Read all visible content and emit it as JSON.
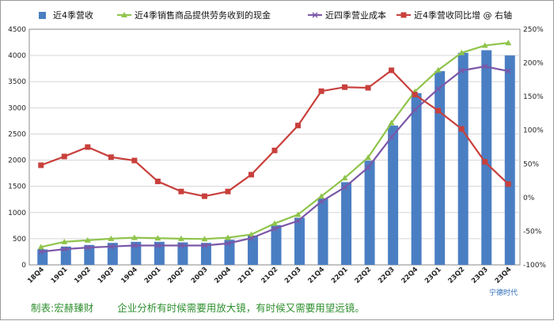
{
  "chart_data": {
    "type": "bar+line",
    "categories": [
      "18Q4",
      "19Q1",
      "19Q2",
      "19Q3",
      "19Q4",
      "20Q1",
      "20Q2",
      "20Q3",
      "20Q4",
      "21Q1",
      "21Q2",
      "21Q3",
      "21Q4",
      "22Q1",
      "22Q2",
      "22Q3",
      "22Q4",
      "23Q1",
      "23Q2",
      "23Q3",
      "23Q4"
    ],
    "series": [
      {
        "name": "近4季营收",
        "kind": "bar",
        "axis": "left",
        "color": "#4a7ec3",
        "values": [
          295,
          350,
          380,
          420,
          440,
          440,
          430,
          420,
          480,
          560,
          760,
          900,
          1270,
          1580,
          1990,
          2660,
          3280,
          3700,
          4050,
          4100,
          4000
        ]
      },
      {
        "name": "近4季销售商品提供劳务收到的现金",
        "kind": "line",
        "axis": "left",
        "color": "#8fc44b",
        "marker": "triangle",
        "values": [
          340,
          440,
          470,
          500,
          520,
          510,
          500,
          495,
          520,
          580,
          790,
          960,
          1310,
          1660,
          2050,
          2710,
          3310,
          3720,
          4050,
          4190,
          4240
        ]
      },
      {
        "name": "近四季营业成本",
        "kind": "line",
        "axis": "left",
        "color": "#7b57a8",
        "marker": "x",
        "values": [
          250,
          300,
          330,
          350,
          370,
          370,
          370,
          370,
          410,
          510,
          690,
          840,
          1210,
          1480,
          1860,
          2440,
          2960,
          3360,
          3710,
          3790,
          3700
        ]
      },
      {
        "name": "近4季营收同比增 @ 右轴",
        "kind": "line",
        "axis": "right",
        "color": "#c8403c",
        "marker": "square",
        "values": [
          48,
          61,
          75,
          60,
          55,
          24,
          9,
          2,
          9,
          34,
          70,
          107,
          158,
          164,
          163,
          189,
          153,
          129,
          102,
          53,
          20
        ]
      }
    ],
    "y_left": {
      "min": 0,
      "max": 4500,
      "step": 500
    },
    "y_right": {
      "min": -100,
      "max": 250,
      "step": 50,
      "suffix": "%"
    },
    "grid": true,
    "legend": "top"
  },
  "footer": {
    "credit": "制表:宏赫臻财",
    "quote": "企业分析有时候需要用放大镜，有时候又需要用望远镜。"
  },
  "brand": "宁德时代"
}
